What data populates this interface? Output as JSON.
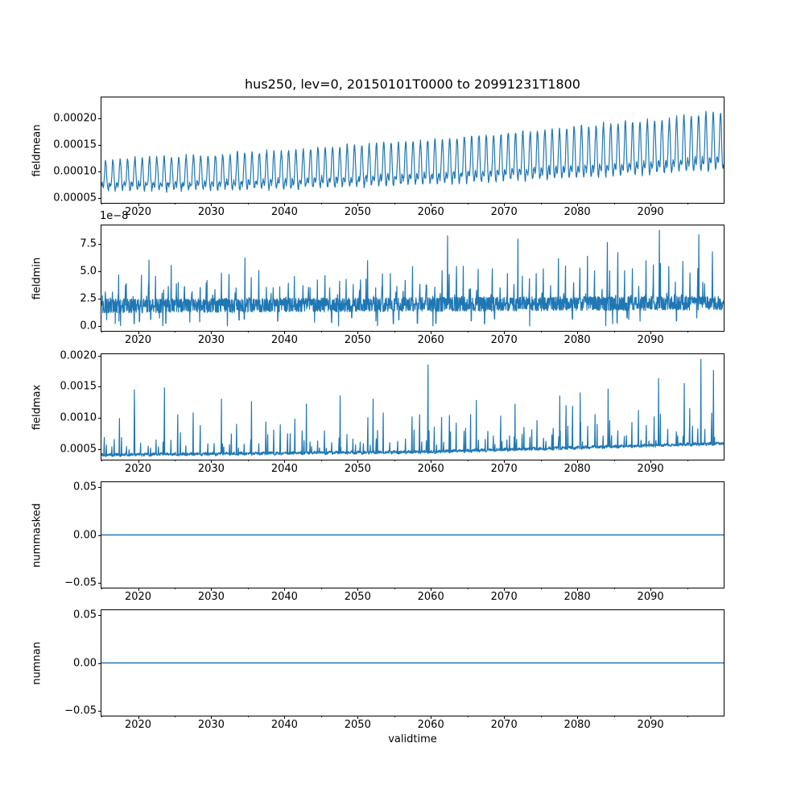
{
  "figure": {
    "background": "#ffffff",
    "text_color": "#000000"
  },
  "chart_data": {
    "type": "line",
    "title": "hus250, lev=0, 20150101T0000 to 20991231T1800",
    "xlabel": "validtime",
    "line_color": "#1f77b4",
    "x_range": [
      2015,
      2100
    ],
    "xticks": {
      "values": [
        2020,
        2030,
        2040,
        2050,
        2060,
        2070,
        2080,
        2090
      ],
      "labels": [
        "2020",
        "2030",
        "2040",
        "2050",
        "2060",
        "2070",
        "2080",
        "2090"
      ]
    },
    "xticks_minor": [
      2015,
      2025,
      2035,
      2045,
      2055,
      2065,
      2075,
      2085,
      2095
    ],
    "x_tick_labels_on_every_subplot": true,
    "legend": "none",
    "grid": false,
    "subplots": [
      {
        "name": "fieldmean",
        "ylabel": "fieldmean",
        "ylim": [
          4.1e-05,
          0.000239
        ],
        "yticks": {
          "values": [
            5e-05,
            0.0001,
            0.00015,
            0.0002
          ],
          "labels": [
            "0.00005",
            "0.00010",
            "0.00015",
            "0.00020"
          ]
        },
        "signal": {
          "kind": "seasonal_wave",
          "samples_per_year": 24,
          "trend": {
            "x": [
              2015,
              2030,
              2045,
              2060,
              2075,
              2090,
              2099.8
            ],
            "y": [
              8.6e-05,
              9e-05,
              9.8e-05,
              0.000108,
              0.00012,
              0.000133,
              0.000145
            ]
          },
          "amplitude": {
            "x": [
              2015,
              2099.8
            ],
            "y": [
              2.9e-05,
              5.6e-05
            ]
          },
          "noise": 7e-06,
          "osc": [
            {
              "period": 1,
              "phase": -1.9,
              "weight": 0.75
            },
            {
              "period": 0.5,
              "phase": 0.6,
              "weight": 0.45
            }
          ]
        }
      },
      {
        "name": "fieldmin",
        "ylabel": "fieldmin",
        "offset_text": "1e−8",
        "ylim": [
          -4.5e-09,
          9.15e-08
        ],
        "yticks": {
          "values": [
            0.0,
            2.5e-08,
            5e-08,
            7.5e-08
          ],
          "labels": [
            "0.0",
            "2.5",
            "5.0",
            "7.5"
          ]
        },
        "signal": {
          "kind": "band_spikes",
          "samples_per_year": 28,
          "base": {
            "x": [
              2015,
              2100
            ],
            "y": [
              1.8e-08,
              2.1e-08
            ]
          },
          "band_step": 5.5e-09,
          "band_jitter": 3e-09,
          "spike": {
            "height_min": 1.2e-08,
            "height_rand": 3.2e-08,
            "height_growth": 2.8e-08,
            "secondary_prob": 0.55,
            "cap": 8.9e-08
          },
          "dip": {
            "prob": 0.33,
            "min": 1.5e-09,
            "rand": 6e-09
          },
          "peaks": [
            {
              "x": 2021.5,
              "y": 6e-08
            },
            {
              "x": 2034.6,
              "y": 6.2e-08
            },
            {
              "x": 2062.3,
              "y": 8.2e-08
            },
            {
              "x": 2071.9,
              "y": 7.9e-08
            },
            {
              "x": 2084.1,
              "y": 7.6e-08
            },
            {
              "x": 2091.2,
              "y": 8.7e-08
            },
            {
              "x": 2096.6,
              "y": 8.3e-08
            }
          ],
          "dips": [
            {
              "x": 2017.6,
              "y": 3e-10
            },
            {
              "x": 2023.4,
              "y": 2e-10
            },
            {
              "x": 2032.2,
              "y": 1.5e-10
            },
            {
              "x": 2047.4,
              "y": 1e-10
            },
            {
              "x": 2052.7,
              "y": 2e-10
            },
            {
              "x": 2060.3,
              "y": 5e-11
            },
            {
              "x": 2073.5,
              "y": 5e-11
            },
            {
              "x": 2083.9,
              "y": 3e-10
            }
          ]
        }
      },
      {
        "name": "fieldmax",
        "ylabel": "fieldmax",
        "ylim": [
          0.00033,
          0.00202
        ],
        "yticks": {
          "values": [
            0.0005,
            0.001,
            0.0015,
            0.002
          ],
          "labels": [
            "0.0005",
            "0.0010",
            "0.0015",
            "0.0020"
          ]
        },
        "signal": {
          "kind": "base_spikes",
          "samples_per_year": 28,
          "base": {
            "x": [
              2015,
              2060,
              2100
            ],
            "y": [
              0.000405,
              0.000455,
              0.00059
            ]
          },
          "noise": 2.2e-05,
          "spike": {
            "min": 0.00013,
            "rand": 0.00055,
            "growth": 0.00012,
            "secondary_prob": 0.65
          },
          "peaks": [
            {
              "x": 2019.5,
              "y": 0.00145
            },
            {
              "x": 2023.6,
              "y": 0.00148
            },
            {
              "x": 2031.4,
              "y": 0.0013
            },
            {
              "x": 2035.5,
              "y": 0.00126
            },
            {
              "x": 2043.0,
              "y": 0.00122
            },
            {
              "x": 2047.6,
              "y": 0.00135
            },
            {
              "x": 2052.1,
              "y": 0.0013
            },
            {
              "x": 2059.6,
              "y": 0.00185
            },
            {
              "x": 2066.2,
              "y": 0.00128
            },
            {
              "x": 2071.5,
              "y": 0.00122
            },
            {
              "x": 2077.6,
              "y": 0.00135
            },
            {
              "x": 2080.4,
              "y": 0.0014
            },
            {
              "x": 2084.2,
              "y": 0.00146
            },
            {
              "x": 2091.1,
              "y": 0.00163
            },
            {
              "x": 2094.6,
              "y": 0.00155
            },
            {
              "x": 2096.9,
              "y": 0.00194
            },
            {
              "x": 2098.6,
              "y": 0.00176
            }
          ]
        }
      },
      {
        "name": "nummasked",
        "ylabel": "nummasked",
        "ylim": [
          -0.055,
          0.055
        ],
        "yticks": {
          "values": [
            -0.05,
            0.0,
            0.05
          ],
          "labels": [
            "−0.05",
            "0.00",
            "0.05"
          ]
        },
        "signal": {
          "kind": "constant",
          "value": 0
        }
      },
      {
        "name": "numnan",
        "ylabel": "numnan",
        "ylim": [
          -0.055,
          0.055
        ],
        "yticks": {
          "values": [
            -0.05,
            0.0,
            0.05
          ],
          "labels": [
            "−0.05",
            "0.00",
            "0.05"
          ]
        },
        "signal": {
          "kind": "constant",
          "value": 0
        }
      }
    ]
  }
}
